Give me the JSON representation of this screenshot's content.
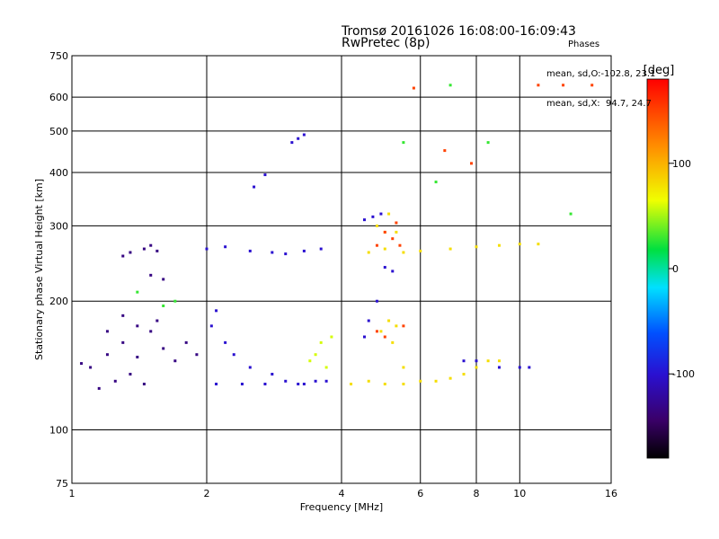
{
  "header": {
    "title_line1": "Tromsø 20161026 16:08:00-16:09:43",
    "title_line2": "RwPretec (8p)"
  },
  "stats": {
    "heading": "Phases",
    "line_o": "mean, sd,O:-102.8, 23.1",
    "line_x": "mean, sd,X:  94.7, 24.7"
  },
  "chart_data": {
    "type": "scatter",
    "xlabel": "Frequency [MHz]",
    "ylabel": "Stationary phase Virtual Height [km]",
    "x_scale": "log",
    "y_scale": "log",
    "xlim": [
      1,
      16
    ],
    "ylim": [
      75,
      750
    ],
    "x_ticks": [
      1,
      2,
      4,
      6,
      8,
      10,
      16
    ],
    "y_ticks": [
      75,
      100,
      200,
      300,
      400,
      500,
      600,
      750
    ],
    "x_gridlines": [
      2,
      4,
      6,
      8,
      10
    ],
    "y_gridlines": [
      100,
      200,
      300,
      400,
      500,
      600
    ],
    "grid": true,
    "colorbar": {
      "label": "[deg]",
      "range": [
        -180,
        180
      ],
      "ticks": [
        100,
        0,
        -100
      ],
      "colormap": "rainbow (black-purple-blue-cyan-green-yellow-orange-red)"
    },
    "series": [
      {
        "color_phase": -130,
        "points": [
          [
            1.05,
            143
          ],
          [
            1.1,
            140
          ],
          [
            1.2,
            150
          ],
          [
            1.3,
            160
          ],
          [
            1.4,
            148
          ],
          [
            1.5,
            170
          ],
          [
            1.6,
            155
          ],
          [
            1.7,
            145
          ],
          [
            1.8,
            160
          ],
          [
            1.9,
            150
          ],
          [
            1.15,
            125
          ],
          [
            1.25,
            130
          ],
          [
            1.35,
            135
          ],
          [
            1.45,
            128
          ],
          [
            1.55,
            180
          ],
          [
            1.45,
            265
          ],
          [
            1.5,
            270
          ],
          [
            1.55,
            262
          ],
          [
            1.5,
            230
          ],
          [
            1.6,
            225
          ],
          [
            1.3,
            255
          ],
          [
            1.35,
            260
          ],
          [
            1.4,
            175
          ],
          [
            1.3,
            185
          ],
          [
            1.2,
            170
          ]
        ]
      },
      {
        "color_phase": -100,
        "points": [
          [
            2.0,
            265
          ],
          [
            2.2,
            268
          ],
          [
            2.5,
            262
          ],
          [
            2.8,
            260
          ],
          [
            3.0,
            258
          ],
          [
            3.3,
            262
          ],
          [
            3.6,
            265
          ],
          [
            2.05,
            175
          ],
          [
            2.1,
            190
          ],
          [
            2.2,
            160
          ],
          [
            2.3,
            150
          ],
          [
            2.5,
            140
          ],
          [
            2.8,
            135
          ],
          [
            3.0,
            130
          ],
          [
            3.3,
            128
          ],
          [
            3.5,
            130
          ],
          [
            3.7,
            130
          ],
          [
            2.1,
            128
          ],
          [
            2.4,
            128
          ],
          [
            2.7,
            128
          ],
          [
            3.2,
            128
          ],
          [
            3.1,
            470
          ],
          [
            3.2,
            480
          ],
          [
            3.3,
            490
          ],
          [
            2.7,
            395
          ],
          [
            2.55,
            370
          ],
          [
            4.5,
            165
          ],
          [
            4.6,
            180
          ],
          [
            4.8,
            200
          ],
          [
            4.5,
            310
          ],
          [
            4.7,
            315
          ],
          [
            4.9,
            320
          ],
          [
            5.0,
            240
          ],
          [
            5.2,
            235
          ],
          [
            7.5,
            145
          ],
          [
            8.0,
            145
          ],
          [
            9.0,
            140
          ],
          [
            10.0,
            140
          ],
          [
            10.5,
            140
          ]
        ]
      },
      {
        "color_phase": 60,
        "points": [
          [
            3.5,
            150
          ],
          [
            3.7,
            140
          ],
          [
            3.6,
            160
          ],
          [
            3.8,
            165
          ],
          [
            3.4,
            145
          ]
        ]
      },
      {
        "color_phase": 80,
        "points": [
          [
            4.2,
            128
          ],
          [
            4.6,
            130
          ],
          [
            5.0,
            128
          ],
          [
            5.5,
            128
          ],
          [
            6.0,
            130
          ],
          [
            6.5,
            130
          ],
          [
            7.0,
            132
          ],
          [
            7.5,
            135
          ],
          [
            8.0,
            140
          ],
          [
            8.5,
            145
          ],
          [
            9.0,
            145
          ],
          [
            4.6,
            260
          ],
          [
            5.0,
            265
          ],
          [
            5.5,
            260
          ],
          [
            6.0,
            262
          ],
          [
            7.0,
            265
          ],
          [
            8.0,
            268
          ],
          [
            9.0,
            270
          ],
          [
            10.0,
            272
          ],
          [
            11.0,
            272
          ],
          [
            4.8,
            300
          ],
          [
            5.0,
            290
          ],
          [
            5.3,
            290
          ],
          [
            5.1,
            320
          ],
          [
            4.9,
            170
          ],
          [
            5.1,
            180
          ],
          [
            5.3,
            175
          ],
          [
            5.2,
            160
          ],
          [
            5.5,
            140
          ]
        ]
      },
      {
        "color_phase": 150,
        "points": [
          [
            5.0,
            290
          ],
          [
            5.3,
            305
          ],
          [
            4.8,
            270
          ],
          [
            5.2,
            280
          ],
          [
            5.4,
            270
          ],
          [
            5.5,
            175
          ],
          [
            4.8,
            170
          ],
          [
            5.0,
            165
          ],
          [
            5.8,
            630
          ],
          [
            6.8,
            450
          ],
          [
            7.8,
            420
          ],
          [
            11.0,
            640
          ],
          [
            12.5,
            640
          ],
          [
            14.5,
            640
          ]
        ]
      },
      {
        "color_phase": 30,
        "points": [
          [
            1.4,
            210
          ],
          [
            1.6,
            195
          ],
          [
            1.7,
            200
          ],
          [
            5.5,
            470
          ],
          [
            6.5,
            380
          ],
          [
            8.5,
            470
          ],
          [
            7.0,
            640
          ],
          [
            13.0,
            320
          ]
        ]
      }
    ]
  }
}
